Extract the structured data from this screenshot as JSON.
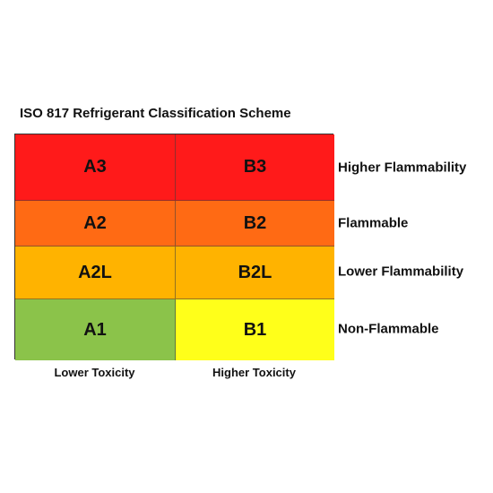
{
  "title": "ISO 817 Refrigerant Classification Scheme",
  "rows": [
    {
      "label": "Higher Flammability",
      "cells": [
        {
          "text": "A3",
          "color": "#ff1a1a"
        },
        {
          "text": "B3",
          "color": "#ff1a1a"
        }
      ]
    },
    {
      "label": "Flammable",
      "cells": [
        {
          "text": "A2",
          "color": "#ff6a14"
        },
        {
          "text": "B2",
          "color": "#ff6a14"
        }
      ]
    },
    {
      "label": "Lower Flammability",
      "cells": [
        {
          "text": "A2L",
          "color": "#ffb300"
        },
        {
          "text": "B2L",
          "color": "#ffb300"
        }
      ]
    },
    {
      "label": "Non-Flammable",
      "cells": [
        {
          "text": "A1",
          "color": "#8bc34a"
        },
        {
          "text": "B1",
          "color": "#ffff1a"
        }
      ]
    }
  ],
  "columns": [
    "Lower Toxicity",
    "Higher Toxicity"
  ]
}
